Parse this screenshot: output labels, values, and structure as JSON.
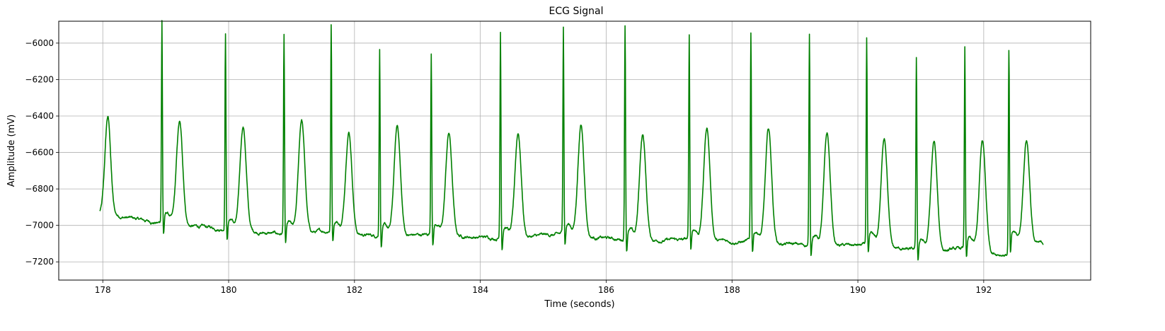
{
  "chart_data": {
    "type": "line",
    "title": "ECG Signal",
    "xlabel": "Time (seconds)",
    "ylabel": "Amplitude (mV)",
    "xlim": [
      177.3,
      193.7
    ],
    "ylim": [
      -7300,
      -5880
    ],
    "xticks": [
      178,
      180,
      182,
      184,
      186,
      188,
      190,
      192
    ],
    "yticks": [
      -7200,
      -7000,
      -6800,
      -6600,
      -6400,
      -6200,
      -6000
    ],
    "grid": true,
    "line_color": "#008000",
    "x_start": 177.95,
    "x_end": 192.95,
    "beats": [
      {
        "r_time": 178.94,
        "r_peak": -5885,
        "t_peak": -6430,
        "baseline": -6990
      },
      {
        "r_time": 179.95,
        "r_peak": -5955,
        "t_peak": -6450,
        "baseline": -7020
      },
      {
        "r_time": 180.88,
        "r_peak": -5970,
        "t_peak": -6430,
        "baseline": -7050
      },
      {
        "r_time": 181.63,
        "r_peak": -5910,
        "t_peak": -6470,
        "baseline": -7030
      },
      {
        "r_time": 182.4,
        "r_peak": -6035,
        "t_peak": -6460,
        "baseline": -7060
      },
      {
        "r_time": 183.22,
        "r_peak": -6060,
        "t_peak": -6490,
        "baseline": -7050
      },
      {
        "r_time": 184.32,
        "r_peak": -5940,
        "t_peak": -6500,
        "baseline": -7070
      },
      {
        "r_time": 185.32,
        "r_peak": -5920,
        "t_peak": -6440,
        "baseline": -7050
      },
      {
        "r_time": 186.3,
        "r_peak": -5905,
        "t_peak": -6500,
        "baseline": -7080
      },
      {
        "r_time": 187.32,
        "r_peak": -5970,
        "t_peak": -6460,
        "baseline": -7080
      },
      {
        "r_time": 188.3,
        "r_peak": -5960,
        "t_peak": -6470,
        "baseline": -7090
      },
      {
        "r_time": 189.23,
        "r_peak": -5970,
        "t_peak": -6500,
        "baseline": -7110
      },
      {
        "r_time": 190.14,
        "r_peak": -5990,
        "t_peak": -6510,
        "baseline": -7110
      },
      {
        "r_time": 190.93,
        "r_peak": -6095,
        "t_peak": -6550,
        "baseline": -7140
      },
      {
        "r_time": 191.7,
        "r_peak": -6030,
        "t_peak": -6530,
        "baseline": -7130
      },
      {
        "r_time": 192.4,
        "r_peak": -6055,
        "t_peak": -6590,
        "baseline": -7160
      }
    ]
  }
}
